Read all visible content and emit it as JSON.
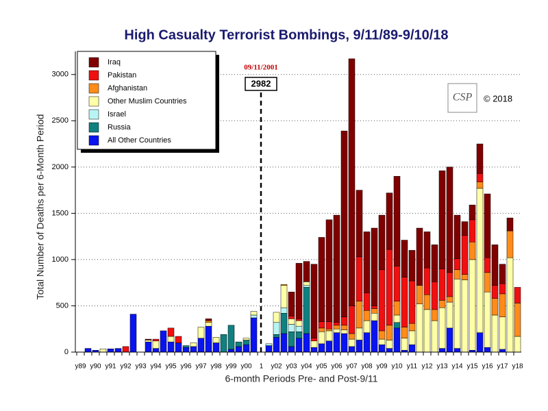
{
  "chart_data": {
    "type": "stacked-bar",
    "title": "High Casualty Terrorist Bombings, 9/11/89-9/10/18",
    "y_axis_label": "Total Number of Deaths per 6-Month Period",
    "x_axis_label": "6-month Periods Pre- and Post-9/11",
    "annotations": {
      "event_date": "09/11/2001",
      "event_value": "2982",
      "copyright": "© 2018",
      "logo": "CSP"
    },
    "categories": [
      "y89",
      null,
      "y90",
      null,
      "y91",
      null,
      "y92",
      null,
      "y93",
      null,
      "y94",
      null,
      "y95",
      null,
      "y96",
      null,
      "y97",
      null,
      "y98",
      null,
      "y99",
      null,
      "y00",
      null,
      "1",
      null,
      "y02",
      null,
      "y03",
      null,
      "y04",
      null,
      "y05",
      null,
      "y06",
      null,
      "y07",
      null,
      "y08",
      null,
      "y09",
      null,
      "y10",
      null,
      "y11",
      null,
      "y12",
      null,
      "y13",
      null,
      "y14",
      null,
      "y15",
      null,
      "y16",
      null,
      "y17",
      null,
      "y18"
    ],
    "series": [
      {
        "name": "Iraq",
        "color": "#800000",
        "values": [
          0,
          0,
          0,
          0,
          0,
          0,
          0,
          0,
          0,
          10,
          0,
          0,
          0,
          0,
          0,
          0,
          0,
          20,
          0,
          0,
          0,
          0,
          0,
          0,
          0,
          0,
          0,
          0,
          260,
          600,
          220,
          800,
          910,
          1100,
          1160,
          2010,
          2670,
          720,
          660,
          840,
          590,
          610,
          970,
          400,
          330,
          620,
          390,
          400,
          1060,
          1140,
          470,
          150,
          160,
          320,
          690,
          440,
          210,
          140,
          0
        ]
      },
      {
        "name": "Pakistan",
        "color": "#f01010",
        "values": [
          0,
          0,
          0,
          0,
          0,
          0,
          60,
          0,
          0,
          0,
          20,
          0,
          90,
          70,
          0,
          0,
          0,
          0,
          0,
          0,
          0,
          0,
          0,
          0,
          0,
          0,
          0,
          0,
          30,
          20,
          0,
          30,
          70,
          80,
          30,
          90,
          300,
          480,
          190,
          30,
          660,
          820,
          380,
          540,
          460,
          0,
          290,
          300,
          340,
          260,
          120,
          420,
          240,
          90,
          160,
          140,
          110,
          0,
          170
        ]
      },
      {
        "name": "Afghanistan",
        "color": "#ff8c1a",
        "values": [
          0,
          0,
          0,
          0,
          0,
          0,
          0,
          0,
          0,
          0,
          0,
          0,
          0,
          0,
          0,
          0,
          0,
          20,
          0,
          0,
          0,
          0,
          0,
          0,
          0,
          0,
          0,
          10,
          0,
          0,
          0,
          0,
          40,
          20,
          40,
          50,
          60,
          290,
          110,
          50,
          90,
          160,
          150,
          120,
          80,
          200,
          160,
          120,
          80,
          60,
          100,
          60,
          190,
          70,
          210,
          180,
          250,
          290,
          360
        ]
      },
      {
        "name": "Other Muslim Countries",
        "color": "#ffffa8",
        "values": [
          0,
          0,
          0,
          35,
          0,
          0,
          0,
          0,
          0,
          20,
          80,
          0,
          60,
          0,
          0,
          40,
          120,
          40,
          60,
          0,
          0,
          0,
          20,
          40,
          0,
          0,
          110,
          240,
          60,
          60,
          40,
          70,
          130,
          110,
          40,
          40,
          80,
          130,
          130,
          80,
          60,
          90,
          80,
          130,
          150,
          520,
          460,
          340,
          440,
          280,
          750,
          780,
          980,
          1560,
          600,
          400,
          350,
          1020,
          170
        ]
      },
      {
        "name": "Israel",
        "color": "#b8f4f4",
        "values": [
          0,
          0,
          0,
          0,
          0,
          0,
          0,
          0,
          0,
          0,
          0,
          0,
          0,
          0,
          0,
          0,
          0,
          0,
          0,
          0,
          0,
          0,
          0,
          30,
          0,
          20,
          130,
          60,
          80,
          60,
          20,
          0,
          0,
          0,
          0,
          0,
          0,
          0,
          0,
          0,
          0,
          0,
          0,
          0,
          0,
          0,
          0,
          0,
          0,
          0,
          0,
          0,
          0,
          0,
          0,
          0,
          0,
          0,
          0
        ]
      },
      {
        "name": "Russia",
        "color": "#108080",
        "values": [
          0,
          0,
          0,
          0,
          0,
          0,
          0,
          0,
          0,
          0,
          0,
          0,
          0,
          0,
          20,
          0,
          0,
          0,
          0,
          190,
          260,
          50,
          50,
          0,
          0,
          0,
          30,
          220,
          160,
          70,
          500,
          0,
          0,
          0,
          0,
          0,
          0,
          0,
          0,
          0,
          0,
          0,
          60,
          0,
          0,
          0,
          0,
          0,
          0,
          0,
          0,
          0,
          0,
          0,
          0,
          0,
          0,
          0,
          0
        ]
      },
      {
        "name": "All Other Countries",
        "color": "#0a14f0",
        "values": [
          0,
          40,
          20,
          0,
          35,
          40,
          0,
          410,
          0,
          110,
          40,
          230,
          110,
          100,
          50,
          60,
          150,
          280,
          100,
          0,
          30,
          60,
          80,
          370,
          0,
          70,
          160,
          200,
          60,
          150,
          200,
          50,
          90,
          120,
          210,
          200,
          60,
          130,
          210,
          340,
          80,
          40,
          260,
          20,
          80,
          0,
          0,
          0,
          40,
          260,
          40,
          0,
          20,
          210,
          50,
          0,
          30,
          0,
          0
        ]
      }
    ],
    "ylim": [
      0,
      3250
    ],
    "yticks": [
      0,
      500,
      1000,
      1500,
      2000,
      2500,
      3000
    ],
    "grid": true,
    "legend": "top-left"
  }
}
